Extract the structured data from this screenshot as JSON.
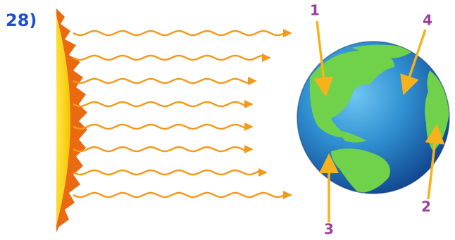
{
  "question_number": "28)",
  "labels": [
    "1",
    "2",
    "3",
    "4"
  ]
}
